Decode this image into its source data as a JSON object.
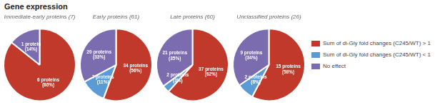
{
  "chart_data": {
    "type": "pie",
    "title": "Gene expression",
    "categories": [
      "Sum of di-Gly fold changes (C245/WT) > 1",
      "Sum of di-Gly fold changes (C245/WT) < 1",
      "No effect"
    ],
    "colors": [
      "#c0392b",
      "#5b9bd5",
      "#7b6cb0"
    ],
    "series": [
      {
        "name": "Immediate-early proteins (7)",
        "values": [
          6,
          0,
          1
        ],
        "value_labels": [
          "6 proteins\n(86%)",
          null,
          "1 protein\n(14%)"
        ]
      },
      {
        "name": "Early proteins (61)",
        "values": [
          34,
          7,
          20
        ],
        "value_labels": [
          "34 proteins\n(56%)",
          "7 proteins\n(11%)",
          "20 proteins\n(33%)"
        ]
      },
      {
        "name": "Late proteins (60)",
        "values": [
          37,
          2,
          21
        ],
        "value_labels": [
          "37 proteins\n(62%)",
          "2 proteins\n(3%)",
          "21 proteins\n(35%)"
        ]
      },
      {
        "name": "Unclassified proteins (26)",
        "values": [
          15,
          2,
          9
        ],
        "value_labels": [
          "15 proteins\n(58%)",
          "2 proteins\n(8%)",
          "9 proteins\n(34%)"
        ]
      }
    ],
    "legend": "right",
    "data_labels": true
  }
}
